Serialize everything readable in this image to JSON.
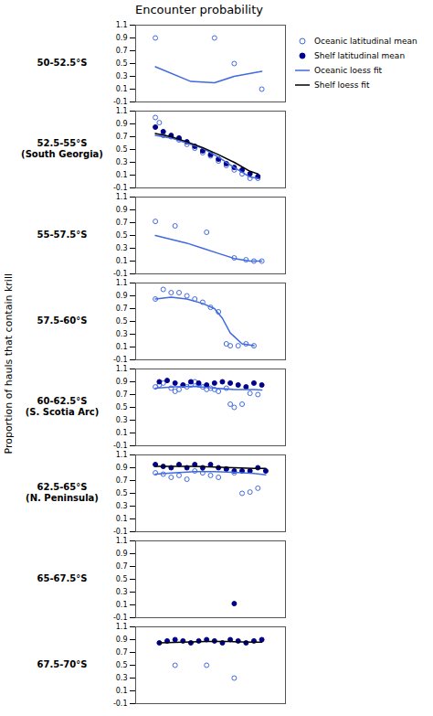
{
  "chart_data": {
    "type": "scatter",
    "title": "Encounter probability",
    "ylabel": "Proportion of hauls that contain krill",
    "xlim": [
      1970,
      2008
    ],
    "tick_labels": "y",
    "legend": "upper right",
    "series": [
      {
        "name": "Oceanic latitudinal mean",
        "type": "scatter",
        "marker": "open_circle",
        "color": "#4169e1"
      },
      {
        "name": "Shelf latitudinal mean",
        "type": "scatter",
        "marker": "circle",
        "color": "#00008b"
      },
      {
        "name": "Oceanic loess fit",
        "type": "line",
        "color": "#4169e1"
      },
      {
        "name": "Shelf loess fit",
        "type": "line",
        "color": "#000000"
      }
    ],
    "panels": [
      {
        "label": "50-52.5°S",
        "ylim": [
          -0.1,
          1.1
        ],
        "yticks": [
          -0.1,
          0.1,
          0.3,
          0.5,
          0.7,
          0.9,
          1.1
        ],
        "series": [
          {
            "name": "Oceanic latitudinal mean",
            "x": [
              1975,
              1990,
              1995,
              2002
            ],
            "values": [
              0.9,
              0.9,
              0.5,
              0.1
            ]
          },
          {
            "name": "Oceanic loess fit",
            "x": [
              1975,
              1984,
              1990,
              1995,
              2002
            ],
            "values": [
              0.45,
              0.22,
              0.2,
              0.3,
              0.38
            ]
          }
        ]
      },
      {
        "label": "52.5-55°S\n(South Georgia)",
        "ylim": [
          -0.1,
          1.1
        ],
        "yticks": [
          -0.1,
          0.1,
          0.3,
          0.5,
          0.7,
          0.9,
          1.1
        ],
        "series": [
          {
            "name": "Oceanic latitudinal mean",
            "x": [
              1975,
              1976,
              1977,
              1979,
              1981,
              1983,
              1985,
              1987,
              1989,
              1991,
              1993,
              1995,
              1997,
              1999,
              2001
            ],
            "values": [
              1.0,
              0.92,
              0.72,
              0.7,
              0.65,
              0.58,
              0.52,
              0.45,
              0.4,
              0.32,
              0.25,
              0.18,
              0.12,
              0.05,
              0.05
            ]
          },
          {
            "name": "Shelf latitudinal mean",
            "x": [
              1975,
              1977,
              1979,
              1981,
              1983,
              1985,
              1987,
              1989,
              1991,
              1993,
              1995,
              1997,
              1999,
              2001
            ],
            "values": [
              0.85,
              0.78,
              0.72,
              0.68,
              0.62,
              0.55,
              0.48,
              0.42,
              0.35,
              0.28,
              0.22,
              0.18,
              0.12,
              0.08
            ]
          },
          {
            "name": "Oceanic loess fit",
            "x": [
              1975,
              1979,
              1983,
              1987,
              1991,
              1995,
              1999,
              2001
            ],
            "values": [
              0.72,
              0.68,
              0.6,
              0.52,
              0.38,
              0.22,
              0.07,
              0.05
            ]
          },
          {
            "name": "Shelf loess fit",
            "x": [
              1975,
              1979,
              1983,
              1987,
              1991,
              1995,
              1999,
              2001
            ],
            "values": [
              0.75,
              0.7,
              0.62,
              0.53,
              0.42,
              0.3,
              0.16,
              0.12
            ]
          }
        ]
      },
      {
        "label": "55-57.5°S",
        "ylim": [
          -0.1,
          1.1
        ],
        "yticks": [
          -0.1,
          0.1,
          0.3,
          0.5,
          0.7,
          0.9,
          1.1
        ],
        "series": [
          {
            "name": "Oceanic latitudinal mean",
            "x": [
              1975,
              1980,
              1988,
              1995,
              1998,
              2000,
              2002
            ],
            "values": [
              0.72,
              0.65,
              0.55,
              0.15,
              0.12,
              0.1,
              0.1
            ]
          },
          {
            "name": "Oceanic loess fit",
            "x": [
              1975,
              1979,
              1983,
              1987,
              1991,
              1995,
              1999,
              2002
            ],
            "values": [
              0.5,
              0.44,
              0.38,
              0.3,
              0.22,
              0.14,
              0.1,
              0.1
            ]
          }
        ]
      },
      {
        "label": "57.5-60°S",
        "ylim": [
          -0.1,
          1.1
        ],
        "yticks": [
          -0.1,
          0.1,
          0.3,
          0.5,
          0.7,
          0.9,
          1.1
        ],
        "series": [
          {
            "name": "Oceanic latitudinal mean",
            "x": [
              1975,
              1977,
              1979,
              1981,
              1983,
              1985,
              1987,
              1989,
              1991,
              1993,
              1994,
              1996,
              1998,
              2000
            ],
            "values": [
              0.85,
              1.0,
              0.95,
              0.95,
              0.9,
              0.85,
              0.8,
              0.72,
              0.65,
              0.15,
              0.12,
              0.12,
              0.15,
              0.12
            ]
          },
          {
            "name": "Oceanic loess fit",
            "x": [
              1975,
              1979,
              1983,
              1987,
              1990,
              1992,
              1994,
              1997,
              2000
            ],
            "values": [
              0.85,
              0.88,
              0.85,
              0.78,
              0.7,
              0.55,
              0.32,
              0.15,
              0.12
            ]
          }
        ]
      },
      {
        "label": "60-62.5°S\n(S. Scotia Arc)",
        "ylim": [
          -0.1,
          1.1
        ],
        "yticks": [
          -0.1,
          0.1,
          0.3,
          0.5,
          0.7,
          0.9,
          1.1
        ],
        "series": [
          {
            "name": "Oceanic latitudinal mean",
            "x": [
              1975,
              1976,
              1977,
              1979,
              1980,
              1981,
              1983,
              1984,
              1985,
              1986,
              1987,
              1988,
              1989,
              1990,
              1991,
              1993,
              1994,
              1995,
              1997,
              1999,
              2001
            ],
            "values": [
              0.82,
              0.85,
              0.88,
              0.8,
              0.75,
              0.78,
              0.82,
              0.85,
              0.9,
              0.85,
              0.82,
              0.78,
              0.8,
              0.78,
              0.75,
              0.8,
              0.55,
              0.5,
              0.55,
              0.72,
              0.7
            ]
          },
          {
            "name": "Shelf latitudinal mean",
            "x": [
              1976,
              1978,
              1980,
              1982,
              1984,
              1986,
              1988,
              1990,
              1992,
              1994,
              1996,
              1998,
              2000,
              2002
            ],
            "values": [
              0.9,
              0.92,
              0.88,
              0.85,
              0.9,
              0.88,
              0.85,
              0.88,
              0.9,
              0.88,
              0.85,
              0.82,
              0.88,
              0.85
            ]
          },
          {
            "name": "Oceanic loess fit",
            "x": [
              1975,
              1980,
              1985,
              1990,
              1995,
              2000,
              2002
            ],
            "values": [
              0.8,
              0.82,
              0.83,
              0.8,
              0.78,
              0.78,
              0.77
            ]
          }
        ]
      },
      {
        "label": "62.5-65°S\n(N. Peninsula)",
        "ylim": [
          -0.1,
          1.1
        ],
        "yticks": [
          -0.1,
          0.1,
          0.3,
          0.5,
          0.7,
          0.9,
          1.1
        ],
        "series": [
          {
            "name": "Oceanic latitudinal mean",
            "x": [
              1975,
              1977,
              1979,
              1981,
              1983,
              1985,
              1987,
              1989,
              1991,
              1993,
              1995,
              1997,
              1999,
              2001
            ],
            "values": [
              0.82,
              0.8,
              0.75,
              0.78,
              0.72,
              0.85,
              0.82,
              0.78,
              0.75,
              0.88,
              0.82,
              0.5,
              0.52,
              0.58
            ]
          },
          {
            "name": "Shelf latitudinal mean",
            "x": [
              1975,
              1977,
              1979,
              1981,
              1983,
              1985,
              1987,
              1989,
              1991,
              1993,
              1995,
              1997,
              1999,
              2001,
              2003
            ],
            "values": [
              0.95,
              0.92,
              0.9,
              0.95,
              0.9,
              0.95,
              0.9,
              0.95,
              0.9,
              0.88,
              0.85,
              0.85,
              0.85,
              0.9,
              0.85
            ]
          },
          {
            "name": "Oceanic loess fit",
            "x": [
              1975,
              1980,
              1985,
              1990,
              1995,
              2000,
              2003
            ],
            "values": [
              0.8,
              0.82,
              0.84,
              0.84,
              0.83,
              0.81,
              0.79
            ]
          },
          {
            "name": "Shelf loess fit",
            "x": [
              1975,
              1980,
              1985,
              1990,
              1995,
              2000,
              2003
            ],
            "values": [
              0.92,
              0.92,
              0.92,
              0.91,
              0.9,
              0.89,
              0.89
            ]
          }
        ]
      },
      {
        "label": "65-67.5°S",
        "ylim": [
          -0.1,
          1.1
        ],
        "yticks": [
          -0.1,
          0.1,
          0.3,
          0.5,
          0.7,
          0.9,
          1.1
        ],
        "series": [
          {
            "name": "Shelf latitudinal mean",
            "x": [
              1995
            ],
            "values": [
              0.12
            ]
          }
        ]
      },
      {
        "label": "67.5-70°S",
        "ylim": [
          -0.1,
          1.1
        ],
        "yticks": [
          -0.1,
          0.1,
          0.3,
          0.5,
          0.7,
          0.9,
          1.1
        ],
        "series": [
          {
            "name": "Oceanic latitudinal mean",
            "x": [
              1980,
              1988,
              1995
            ],
            "values": [
              0.5,
              0.5,
              0.3
            ]
          },
          {
            "name": "Shelf latitudinal mean",
            "x": [
              1976,
              1978,
              1980,
              1982,
              1984,
              1986,
              1988,
              1990,
              1992,
              1994,
              1996,
              1998,
              2000,
              2002
            ],
            "values": [
              0.85,
              0.88,
              0.9,
              0.88,
              0.85,
              0.88,
              0.9,
              0.88,
              0.85,
              0.9,
              0.88,
              0.85,
              0.88,
              0.9
            ]
          },
          {
            "name": "Shelf loess fit",
            "x": [
              1976,
              1982,
              1988,
              1994,
              2000,
              2002
            ],
            "values": [
              0.85,
              0.86,
              0.87,
              0.87,
              0.86,
              0.86
            ]
          }
        ]
      }
    ]
  }
}
